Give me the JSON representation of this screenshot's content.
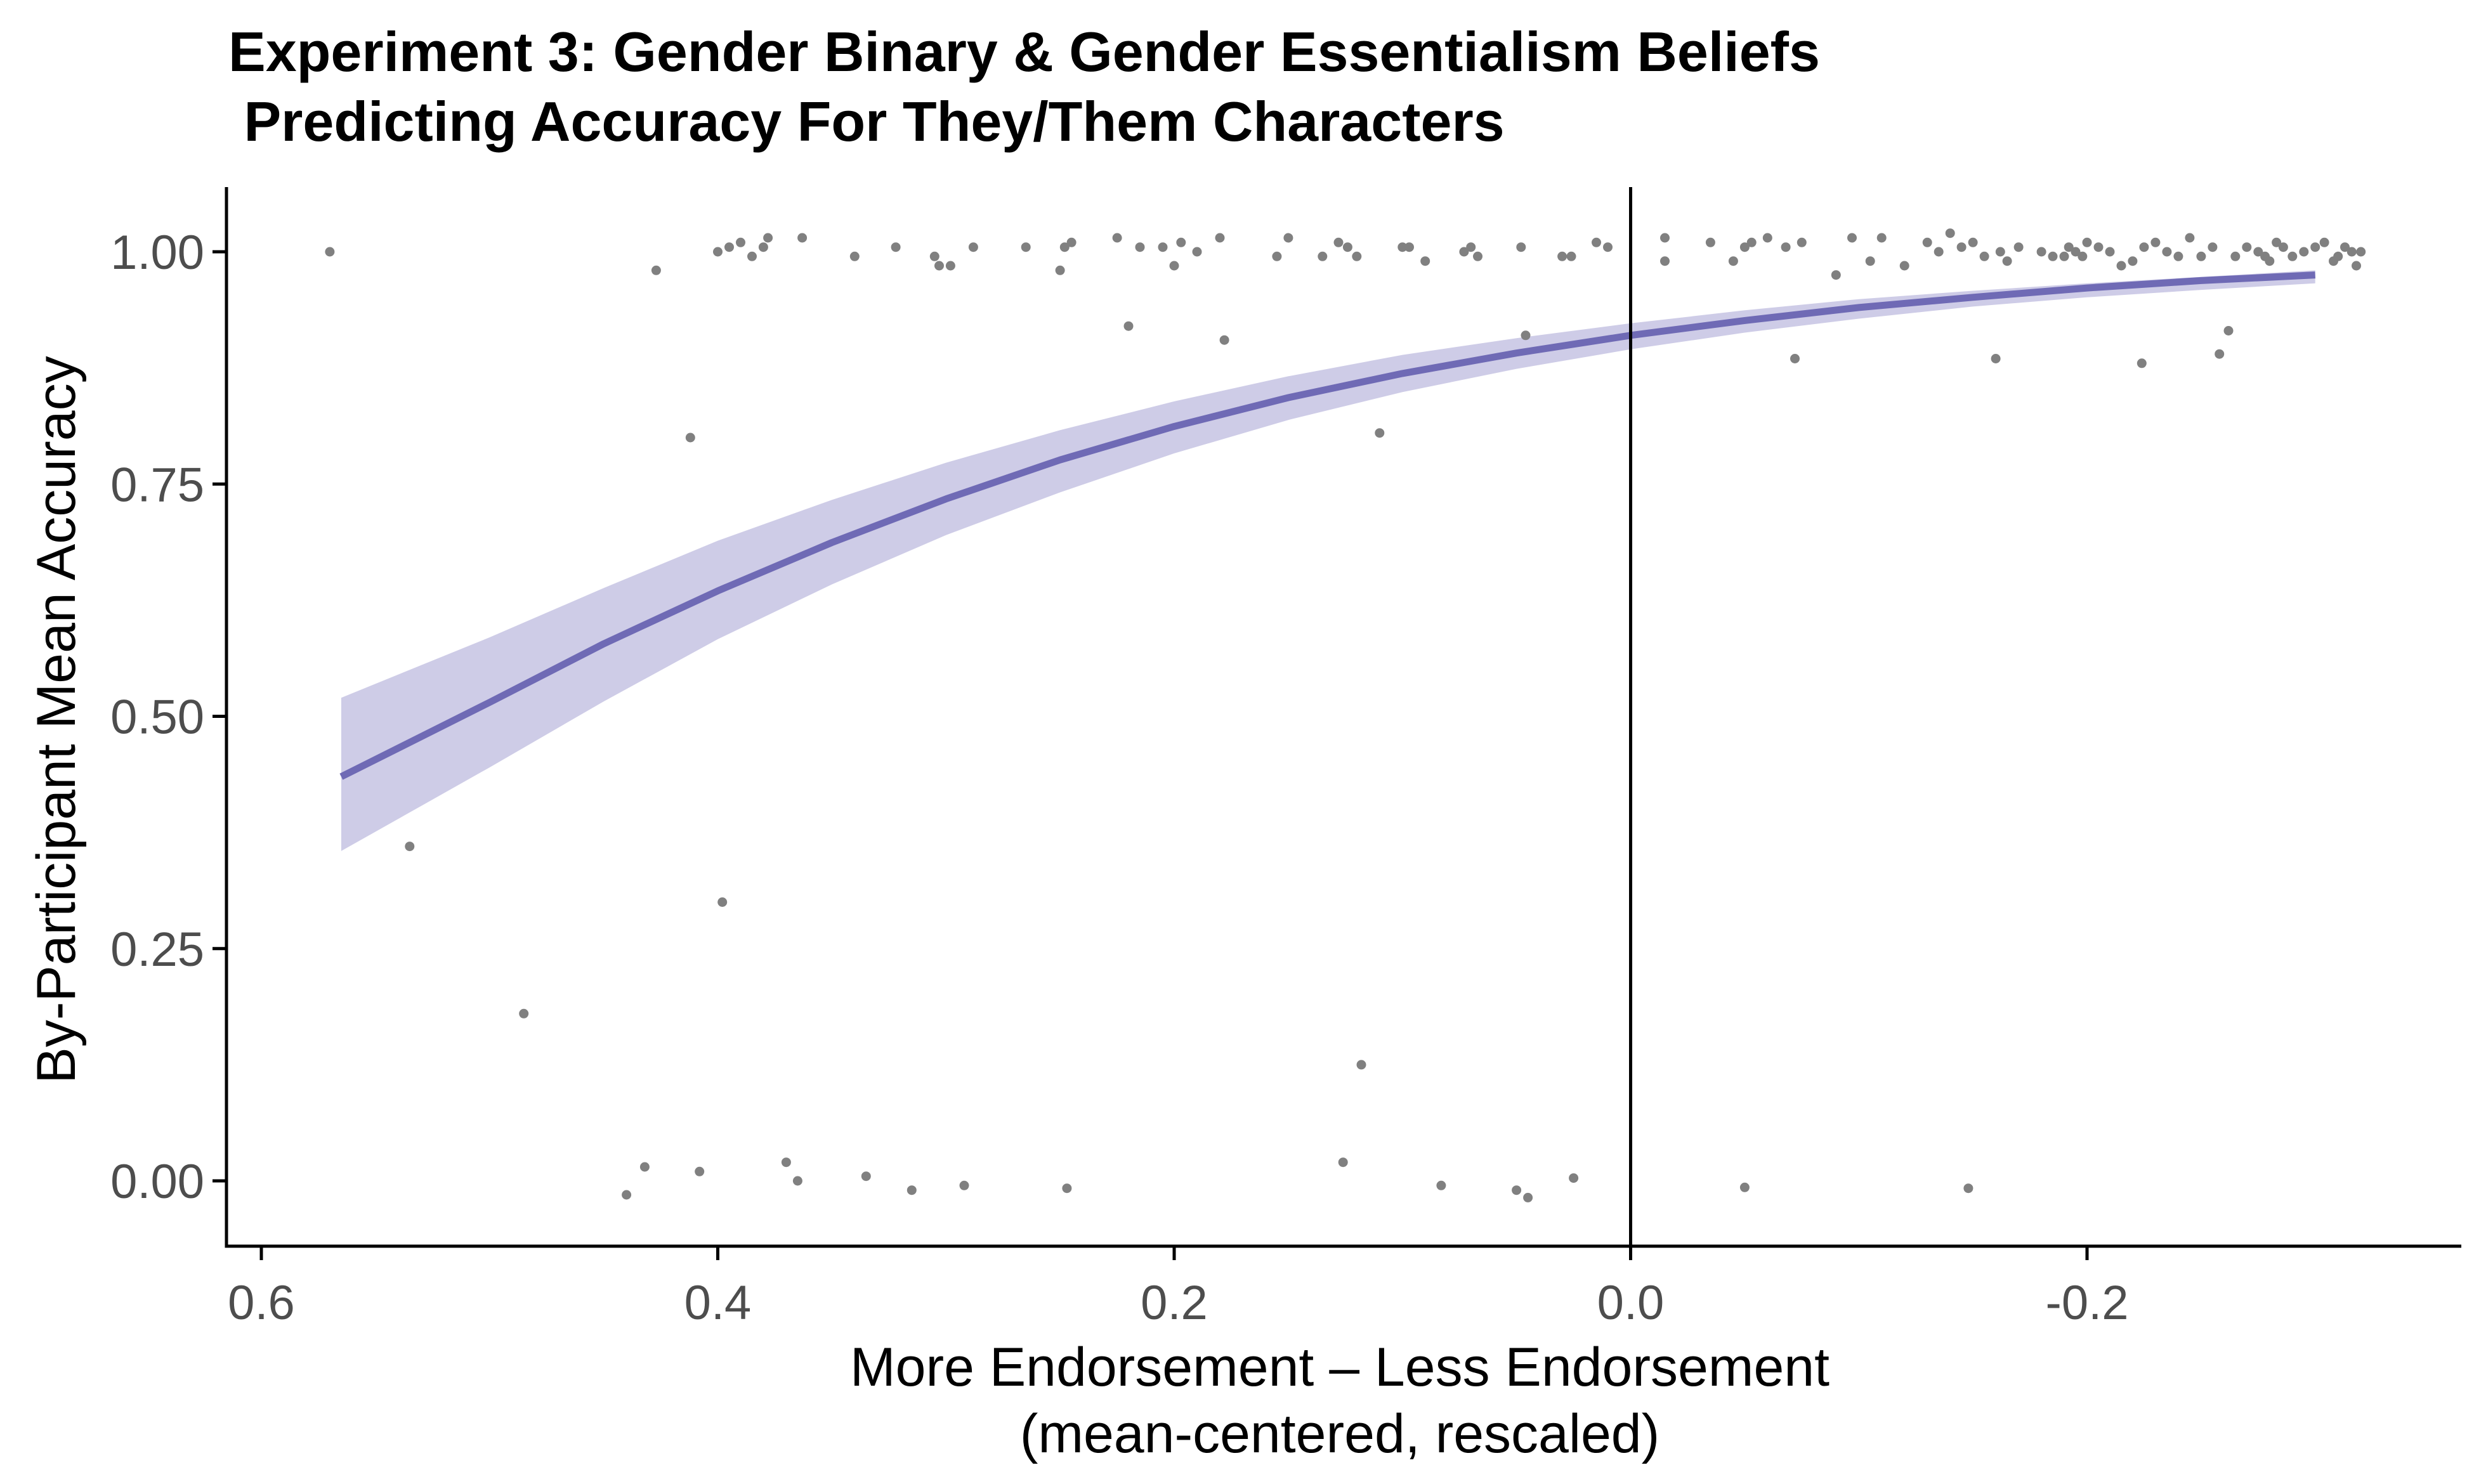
{
  "chart_data": {
    "type": "scatter",
    "title_lines": [
      "Experiment 3: Gender Binary & Gender Essentialism Beliefs",
      " Predicting Accuracy For They/Them Characters"
    ],
    "xlabel_lines": [
      "More Endorsement – Less Endorsement",
      "(mean-centered, rescaled)"
    ],
    "ylabel": "By-Participant Mean Accuracy",
    "x_reversed": true,
    "xlim": [
      0.6,
      -0.3
    ],
    "ylim": [
      -0.07,
      1.07
    ],
    "x_ticks": [
      0.6,
      0.4,
      0.2,
      0.0,
      -0.2
    ],
    "x_tick_labels": [
      "0.6",
      "0.4",
      "0.2",
      "0.0",
      "-0.2"
    ],
    "y_ticks": [
      0,
      0.25,
      0.5,
      0.75,
      1.0
    ],
    "y_tick_labels": [
      "0.00",
      "0.25",
      "0.50",
      "0.75",
      "1.00"
    ],
    "vline_x": 0.0,
    "grid": false,
    "colors": {
      "points": "#808080",
      "fit_line": "#6f6ab5",
      "ribbon": "#c9c6e4",
      "axis": "#000000"
    },
    "series": [
      {
        "type": "scatter",
        "points": [
          [
            0.57,
            1.0
          ],
          [
            0.535,
            0.36
          ],
          [
            0.485,
            0.18
          ],
          [
            0.44,
            -0.015
          ],
          [
            0.432,
            0.015
          ],
          [
            0.427,
            0.98
          ],
          [
            0.412,
            0.8
          ],
          [
            0.408,
            0.01
          ],
          [
            0.4,
            1.0
          ],
          [
            0.398,
            0.3
          ],
          [
            0.395,
            1.005
          ],
          [
            0.39,
            1.01
          ],
          [
            0.385,
            0.995
          ],
          [
            0.38,
            1.005
          ],
          [
            0.378,
            1.015
          ],
          [
            0.37,
            0.02
          ],
          [
            0.365,
            0.0
          ],
          [
            0.363,
            1.015
          ],
          [
            0.34,
            0.995
          ],
          [
            0.335,
            0.005
          ],
          [
            0.322,
            1.005
          ],
          [
            0.315,
            -0.01
          ],
          [
            0.305,
            0.995
          ],
          [
            0.303,
            0.985
          ],
          [
            0.298,
            0.985
          ],
          [
            0.292,
            -0.005
          ],
          [
            0.288,
            1.005
          ],
          [
            0.265,
            1.005
          ],
          [
            0.25,
            0.98
          ],
          [
            0.248,
            1.005
          ],
          [
            0.247,
            -0.008
          ],
          [
            0.245,
            1.01
          ],
          [
            0.225,
            1.015
          ],
          [
            0.22,
            0.92
          ],
          [
            0.215,
            1.005
          ],
          [
            0.2,
            0.985
          ],
          [
            0.205,
            1.005
          ],
          [
            0.197,
            1.01
          ],
          [
            0.19,
            1.0
          ],
          [
            0.18,
            1.015
          ],
          [
            0.178,
            0.905
          ],
          [
            0.155,
            0.995
          ],
          [
            0.15,
            1.015
          ],
          [
            0.135,
            0.995
          ],
          [
            0.128,
            1.01
          ],
          [
            0.126,
            0.02
          ],
          [
            0.124,
            1.005
          ],
          [
            0.12,
            0.995
          ],
          [
            0.118,
            0.125
          ],
          [
            0.11,
            0.805
          ],
          [
            0.1,
            1.005
          ],
          [
            0.097,
            1.005
          ],
          [
            0.09,
            0.99
          ],
          [
            0.083,
            -0.005
          ],
          [
            0.073,
            1.0
          ],
          [
            0.07,
            1.005
          ],
          [
            0.067,
            0.995
          ],
          [
            0.05,
            -0.01
          ],
          [
            0.046,
            0.91
          ],
          [
            0.045,
            -0.018
          ],
          [
            0.048,
            1.005
          ],
          [
            0.03,
            0.995
          ],
          [
            0.026,
            0.995
          ],
          [
            0.025,
            0.003
          ],
          [
            0.015,
            1.01
          ],
          [
            0.01,
            1.005
          ],
          [
            -0.015,
            1.015
          ],
          [
            -0.015,
            0.99
          ],
          [
            -0.035,
            1.01
          ],
          [
            -0.045,
            0.99
          ],
          [
            -0.05,
            1.005
          ],
          [
            -0.05,
            -0.007
          ],
          [
            -0.053,
            1.01
          ],
          [
            -0.06,
            1.015
          ],
          [
            -0.068,
            1.005
          ],
          [
            -0.072,
            0.885
          ],
          [
            -0.075,
            1.01
          ],
          [
            -0.09,
            0.975
          ],
          [
            -0.097,
            1.015
          ],
          [
            -0.105,
            0.99
          ],
          [
            -0.11,
            1.015
          ],
          [
            -0.12,
            0.985
          ],
          [
            -0.13,
            1.01
          ],
          [
            -0.135,
            1.0
          ],
          [
            -0.14,
            1.02
          ],
          [
            -0.145,
            1.005
          ],
          [
            -0.148,
            -0.008
          ],
          [
            -0.15,
            1.01
          ],
          [
            -0.155,
            0.995
          ],
          [
            -0.16,
            0.885
          ],
          [
            -0.162,
            1.0
          ],
          [
            -0.165,
            0.99
          ],
          [
            -0.17,
            1.005
          ],
          [
            -0.18,
            1.0
          ],
          [
            -0.185,
            0.995
          ],
          [
            -0.19,
            0.995
          ],
          [
            -0.192,
            1.005
          ],
          [
            -0.195,
            1.0
          ],
          [
            -0.198,
            0.995
          ],
          [
            -0.2,
            1.01
          ],
          [
            -0.205,
            1.005
          ],
          [
            -0.21,
            1.0
          ],
          [
            -0.215,
            0.985
          ],
          [
            -0.22,
            0.99
          ],
          [
            -0.224,
            0.88
          ],
          [
            -0.225,
            1.005
          ],
          [
            -0.23,
            1.01
          ],
          [
            -0.235,
            1.0
          ],
          [
            -0.24,
            0.995
          ],
          [
            -0.245,
            1.015
          ],
          [
            -0.25,
            0.995
          ],
          [
            -0.255,
            1.005
          ],
          [
            -0.258,
            0.89
          ],
          [
            -0.262,
            0.915
          ],
          [
            -0.265,
            0.995
          ],
          [
            -0.27,
            1.005
          ],
          [
            -0.275,
            1.0
          ],
          [
            -0.278,
            0.995
          ],
          [
            -0.28,
            0.99
          ],
          [
            -0.283,
            1.01
          ],
          [
            -0.286,
            1.005
          ],
          [
            -0.29,
            0.995
          ],
          [
            -0.295,
            1.0
          ],
          [
            -0.3,
            1.005
          ],
          [
            -0.304,
            1.01
          ],
          [
            -0.308,
            0.99
          ],
          [
            -0.31,
            0.995
          ],
          [
            -0.313,
            1.005
          ],
          [
            -0.316,
            1.0
          ],
          [
            -0.318,
            0.985
          ],
          [
            -0.32,
            1.0
          ]
        ]
      },
      {
        "type": "line",
        "x": [
          0.565,
          0.5,
          0.45,
          0.4,
          0.35,
          0.3,
          0.25,
          0.2,
          0.15,
          0.1,
          0.05,
          0.0,
          -0.05,
          -0.1,
          -0.15,
          -0.2,
          -0.25,
          -0.3
        ],
        "y": [
          0.435,
          0.515,
          0.578,
          0.635,
          0.687,
          0.734,
          0.776,
          0.812,
          0.843,
          0.869,
          0.891,
          0.91,
          0.926,
          0.94,
          0.951,
          0.961,
          0.969,
          0.975
        ]
      },
      {
        "type": "ribbon",
        "x": [
          0.565,
          0.5,
          0.45,
          0.4,
          0.35,
          0.3,
          0.25,
          0.2,
          0.15,
          0.1,
          0.05,
          0.0,
          -0.05,
          -0.1,
          -0.15,
          -0.2,
          -0.25,
          -0.3
        ],
        "lower": [
          0.355,
          0.445,
          0.516,
          0.583,
          0.642,
          0.695,
          0.741,
          0.783,
          0.819,
          0.849,
          0.874,
          0.895,
          0.913,
          0.928,
          0.941,
          0.951,
          0.959,
          0.966
        ],
        "upper": [
          0.52,
          0.585,
          0.638,
          0.689,
          0.733,
          0.773,
          0.808,
          0.839,
          0.866,
          0.889,
          0.907,
          0.923,
          0.937,
          0.949,
          0.958,
          0.966,
          0.973,
          0.98
        ]
      }
    ]
  }
}
